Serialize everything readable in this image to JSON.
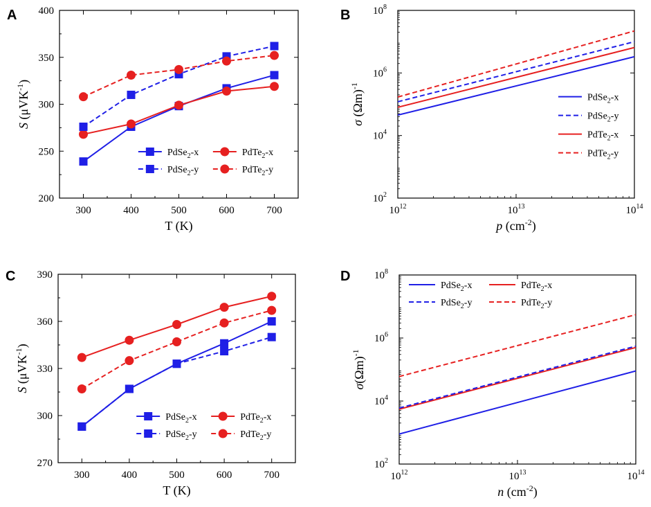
{
  "colors": {
    "blue": "#1f1fe6",
    "red": "#e62020",
    "axis": "#000000"
  },
  "chart_data": [
    {
      "panel": "A",
      "type": "line",
      "x_scale": "linear",
      "y_scale": "linear",
      "xlabel": "T (K)",
      "ylabel_parts": [
        "S",
        " (μVK",
        "-1",
        ")"
      ],
      "xlim": [
        250,
        750
      ],
      "ylim": [
        200,
        400
      ],
      "xticks": [
        300,
        400,
        500,
        600,
        700
      ],
      "xtick_labels": [
        "300",
        "400",
        "500",
        "600",
        "700"
      ],
      "yticks": [
        200,
        250,
        300,
        350,
        400
      ],
      "ytick_labels": [
        "200",
        "250",
        "300",
        "350",
        "400"
      ],
      "legend_columns": 2,
      "legend_position": "bottom-right",
      "series": [
        {
          "name": "PdSe2-x",
          "label_base": "PdSe",
          "label_sub": "2",
          "label_tail": "-x",
          "color": "blue",
          "dash": false,
          "marker": "square",
          "x": [
            300,
            400,
            500,
            600,
            700
          ],
          "values": [
            239,
            276,
            298,
            317,
            331
          ]
        },
        {
          "name": "PdTe2-x",
          "label_base": "PdTe",
          "label_sub": "2",
          "label_tail": "-x",
          "color": "red",
          "dash": false,
          "marker": "circle",
          "x": [
            300,
            400,
            500,
            600,
            700
          ],
          "values": [
            268,
            279,
            299,
            314,
            319
          ]
        },
        {
          "name": "PdSe2-y",
          "label_base": "PdSe",
          "label_sub": "2",
          "label_tail": "-y",
          "color": "blue",
          "dash": true,
          "marker": "square",
          "x": [
            300,
            400,
            500,
            600,
            700
          ],
          "values": [
            276,
            310,
            332,
            351,
            362
          ]
        },
        {
          "name": "PdTe2-y",
          "label_base": "PdTe",
          "label_sub": "2",
          "label_tail": "-y",
          "color": "red",
          "dash": true,
          "marker": "circle",
          "x": [
            300,
            400,
            500,
            600,
            700
          ],
          "values": [
            308,
            331,
            337,
            346,
            352
          ]
        }
      ]
    },
    {
      "panel": "B",
      "type": "line",
      "x_scale": "log",
      "y_scale": "log",
      "xlabel_parts": [
        "p",
        " (cm",
        "-2",
        ")"
      ],
      "ylabel_parts": [
        "σ",
        " (Ωm)",
        "-1"
      ],
      "xlim": [
        1000000000000.0,
        100000000000000.0
      ],
      "ylim": [
        100,
        100000000.0
      ],
      "xticks": [
        1000000000000.0,
        10000000000000.0,
        100000000000000.0
      ],
      "xtick_base": [
        "10",
        "10",
        "10"
      ],
      "xtick_exp": [
        "12",
        "13",
        "14"
      ],
      "yticks": [
        100,
        10000.0,
        1000000.0,
        100000000.0
      ],
      "ytick_base": [
        "10",
        "10",
        "10",
        "10"
      ],
      "ytick_exp": [
        "2",
        "4",
        "6",
        "8"
      ],
      "legend_columns": 1,
      "legend_position": "center-right",
      "series": [
        {
          "name": "PdSe2-x",
          "label_base": "PdSe",
          "label_sub": "2",
          "label_tail": "-x",
          "color": "blue",
          "dash": false,
          "marker": "none",
          "x": [
            1000000000000.0,
            100000000000000.0
          ],
          "values": [
            45000,
            3300000
          ]
        },
        {
          "name": "PdSe2-y",
          "label_base": "PdSe",
          "label_sub": "2",
          "label_tail": "-y",
          "color": "blue",
          "dash": true,
          "marker": "none",
          "x": [
            1000000000000.0,
            100000000000000.0
          ],
          "values": [
            120000,
            10000000
          ]
        },
        {
          "name": "PdTe2-x",
          "label_base": "PdTe",
          "label_sub": "2",
          "label_tail": "-x",
          "color": "red",
          "dash": false,
          "marker": "none",
          "x": [
            1000000000000.0,
            100000000000000.0
          ],
          "values": [
            80000,
            6500000
          ]
        },
        {
          "name": "PdTe2-y",
          "label_base": "PdTe",
          "label_sub": "2",
          "label_tail": "-y",
          "color": "red",
          "dash": true,
          "marker": "none",
          "x": [
            1000000000000.0,
            100000000000000.0
          ],
          "values": [
            170000,
            22000000
          ]
        }
      ]
    },
    {
      "panel": "C",
      "type": "line",
      "x_scale": "linear",
      "y_scale": "linear",
      "xlabel": "T (K)",
      "ylabel_parts": [
        "S",
        " (μVK",
        "-1",
        ")"
      ],
      "xlim": [
        250,
        750
      ],
      "ylim": [
        270,
        390
      ],
      "xticks": [
        300,
        400,
        500,
        600,
        700
      ],
      "xtick_labels": [
        "300",
        "400",
        "500",
        "600",
        "700"
      ],
      "yticks": [
        270,
        300,
        330,
        360,
        390
      ],
      "ytick_labels": [
        "270",
        "300",
        "330",
        "360",
        "390"
      ],
      "legend_columns": 2,
      "legend_position": "bottom-right",
      "series": [
        {
          "name": "PdSe2-x",
          "label_base": "PdSe",
          "label_sub": "2",
          "label_tail": "-x",
          "color": "blue",
          "dash": false,
          "marker": "square",
          "x": [
            300,
            400,
            500,
            600,
            700
          ],
          "values": [
            293,
            317,
            333,
            346,
            360
          ]
        },
        {
          "name": "PdTe2-x",
          "label_base": "PdTe",
          "label_sub": "2",
          "label_tail": "-x",
          "color": "red",
          "dash": false,
          "marker": "circle",
          "x": [
            300,
            400,
            500,
            600,
            700
          ],
          "values": [
            337,
            348,
            358,
            369,
            376
          ]
        },
        {
          "name": "PdSe2-y",
          "label_base": "PdSe",
          "label_sub": "2",
          "label_tail": "-y",
          "color": "blue",
          "dash": true,
          "marker": "square",
          "x": [
            300,
            400,
            500,
            600,
            700
          ],
          "values": [
            293,
            317,
            333,
            341,
            350
          ]
        },
        {
          "name": "PdTe2-y",
          "label_base": "PdTe",
          "label_sub": "2",
          "label_tail": "-y",
          "color": "red",
          "dash": true,
          "marker": "circle",
          "x": [
            300,
            400,
            500,
            600,
            700
          ],
          "values": [
            317,
            335,
            347,
            359,
            367
          ]
        }
      ]
    },
    {
      "panel": "D",
      "type": "line",
      "x_scale": "log",
      "y_scale": "log",
      "xlabel_parts": [
        "n",
        " (cm",
        "-2",
        ")"
      ],
      "ylabel_parts": [
        "σ",
        "(Ωm)",
        "-1"
      ],
      "xlim": [
        1000000000000.0,
        100000000000000.0
      ],
      "ylim": [
        100,
        100000000.0
      ],
      "xticks": [
        1000000000000.0,
        10000000000000.0,
        100000000000000.0
      ],
      "xtick_base": [
        "10",
        "10",
        "10"
      ],
      "xtick_exp": [
        "12",
        "13",
        "14"
      ],
      "yticks": [
        100,
        10000.0,
        1000000.0,
        100000000.0
      ],
      "ytick_base": [
        "10",
        "10",
        "10",
        "10"
      ],
      "ytick_exp": [
        "2",
        "4",
        "6",
        "8"
      ],
      "legend_columns": 2,
      "legend_position": "top-left",
      "series": [
        {
          "name": "PdSe2-x",
          "label_base": "PdSe",
          "label_sub": "2",
          "label_tail": "-x",
          "color": "blue",
          "dash": false,
          "marker": "none",
          "x": [
            1000000000000.0,
            100000000000000.0
          ],
          "values": [
            900,
            90000
          ]
        },
        {
          "name": "PdTe2-x",
          "label_base": "PdTe",
          "label_sub": "2",
          "label_tail": "-x",
          "color": "red",
          "dash": false,
          "marker": "none",
          "x": [
            1000000000000.0,
            100000000000000.0
          ],
          "values": [
            5500,
            500000
          ]
        },
        {
          "name": "PdSe2-y",
          "label_base": "PdSe",
          "label_sub": "2",
          "label_tail": "-y",
          "color": "blue",
          "dash": true,
          "marker": "none",
          "x": [
            1000000000000.0,
            100000000000000.0
          ],
          "values": [
            6000,
            550000
          ]
        },
        {
          "name": "PdTe2-y",
          "label_base": "PdTe",
          "label_sub": "2",
          "label_tail": "-y",
          "color": "red",
          "dash": true,
          "marker": "none",
          "x": [
            1000000000000.0,
            100000000000000.0
          ],
          "values": [
            60000,
            5500000
          ]
        }
      ]
    }
  ]
}
